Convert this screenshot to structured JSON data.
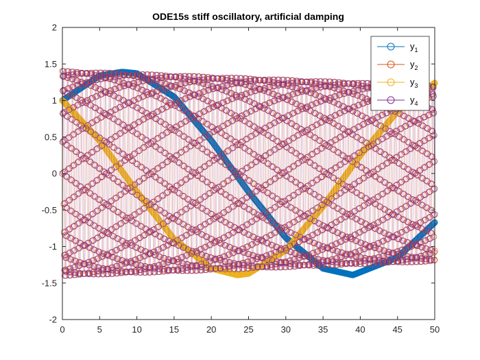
{
  "chart_data": {
    "type": "line",
    "title": "ODE15s stiff oscillatory, artificial damping",
    "xlabel": "",
    "ylabel": "",
    "xlim": [
      0,
      50
    ],
    "ylim": [
      -2,
      2
    ],
    "x_ticks": [
      "0",
      "5",
      "10",
      "15",
      "20",
      "25",
      "30",
      "35",
      "40",
      "45",
      "50"
    ],
    "y_ticks": [
      "-2",
      "-1.5",
      "-1",
      "-0.5",
      "0",
      "0.5",
      "1",
      "1.5",
      "2"
    ],
    "marker": "circle",
    "grid": false,
    "legend_position": "top-right",
    "colors": {
      "y1": "#0072BD",
      "y2": "#D95319",
      "y3": "#EDB120",
      "y4": "#7E2F8E"
    },
    "series": [
      {
        "name": "y1",
        "legend_main": "y",
        "legend_sub": "1",
        "description_of_values": "slow oscillation, amplitude ~1.39, period ~62.8",
        "x": [
          0,
          5,
          8,
          10,
          15,
          20,
          25,
          30,
          35,
          39,
          45,
          50
        ],
        "values": [
          1.0,
          1.34,
          1.39,
          1.37,
          1.05,
          0.45,
          -0.25,
          -0.88,
          -1.3,
          -1.39,
          -1.15,
          -0.67
        ]
      },
      {
        "name": "y2",
        "legend_main": "y",
        "legend_sub": "2",
        "description_of_values": "fast oscillation, amplitude ~1.40 decaying to ~1.20",
        "x": [
          0,
          10,
          20,
          30,
          40,
          50
        ],
        "values_upper_envelope": [
          1.4,
          1.36,
          1.32,
          1.28,
          1.24,
          1.2
        ],
        "values_lower_envelope": [
          -1.4,
          -1.36,
          -1.32,
          -1.28,
          -1.24,
          -1.2
        ]
      },
      {
        "name": "y3",
        "legend_main": "y",
        "legend_sub": "3",
        "description_of_values": "slow oscillation, amplitude ~1.39, phase shifted from y1",
        "x": [
          0,
          5,
          10,
          15,
          20,
          23.5,
          25,
          30,
          35,
          40,
          45,
          50
        ],
        "values": [
          1.0,
          0.45,
          -0.25,
          -0.9,
          -1.3,
          -1.39,
          -1.37,
          -1.05,
          -0.45,
          0.25,
          0.85,
          1.24
        ]
      },
      {
        "name": "y4",
        "legend_main": "y",
        "legend_sub": "4",
        "description_of_values": "fast oscillation, amplitude ~1.40 decaying to ~1.20",
        "x": [
          0,
          10,
          20,
          30,
          40,
          50
        ],
        "values_upper_envelope": [
          1.4,
          1.36,
          1.32,
          1.28,
          1.24,
          1.2
        ],
        "values_lower_envelope": [
          -1.4,
          -1.36,
          -1.32,
          -1.28,
          -1.24,
          -1.2
        ]
      }
    ]
  }
}
